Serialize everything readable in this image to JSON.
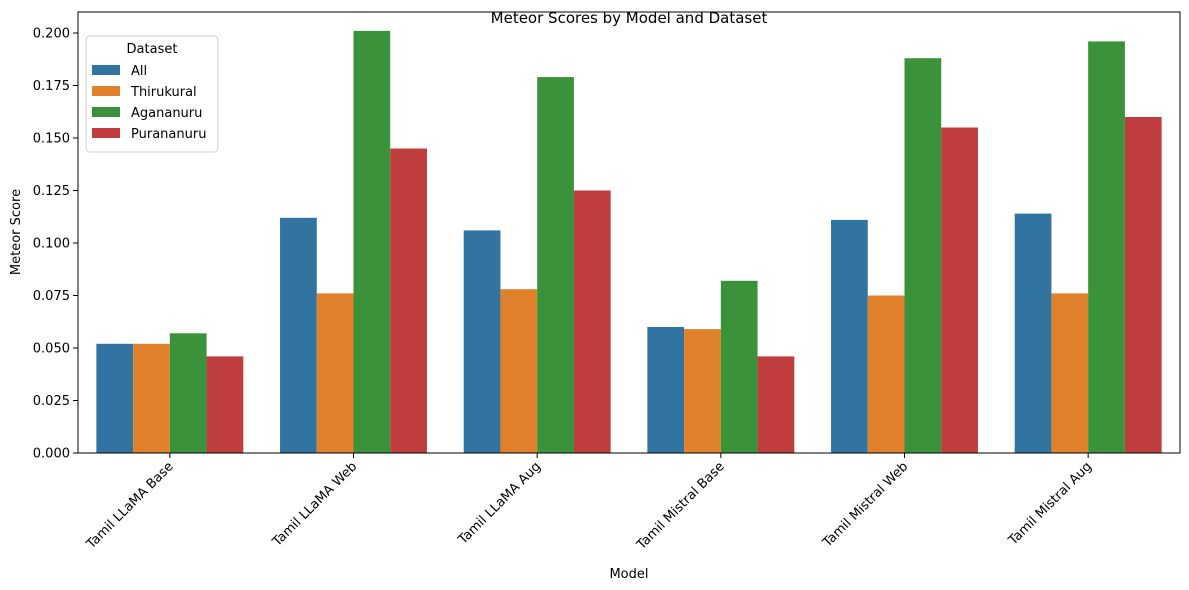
{
  "chart_data": {
    "type": "bar",
    "title": "Meteor Scores by Model and Dataset",
    "xlabel": "Model",
    "ylabel": "Meteor Score",
    "ylim": [
      0,
      0.21
    ],
    "yticks": [
      "0.000",
      "0.025",
      "0.050",
      "0.075",
      "0.100",
      "0.125",
      "0.150",
      "0.175",
      "0.200"
    ],
    "categories": [
      "Tamil LLaMA Base",
      "Tamil LLaMA Web",
      "Tamil LLaMA Aug",
      "Tamil Mistral Base",
      "Tamil Mistral Web",
      "Tamil Mistral Aug"
    ],
    "legend": {
      "title": "Dataset",
      "position": "top-left"
    },
    "grid": false,
    "series": [
      {
        "name": "All",
        "color": "#3274a1",
        "values": [
          0.052,
          0.112,
          0.106,
          0.06,
          0.111,
          0.114
        ]
      },
      {
        "name": "Thirukural",
        "color": "#e1812c",
        "values": [
          0.052,
          0.076,
          0.078,
          0.059,
          0.075,
          0.076
        ]
      },
      {
        "name": "Agananuru",
        "color": "#3a923a",
        "values": [
          0.057,
          0.201,
          0.179,
          0.082,
          0.188,
          0.196
        ]
      },
      {
        "name": "Purananuru",
        "color": "#c03d3e",
        "values": [
          0.046,
          0.145,
          0.125,
          0.046,
          0.155,
          0.16
        ]
      }
    ]
  }
}
